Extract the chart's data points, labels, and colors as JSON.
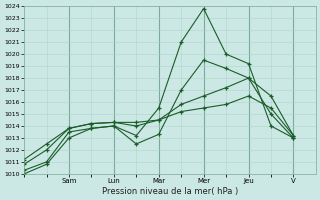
{
  "xlabel": "Pression niveau de la mer( hPa )",
  "bg_color": "#cce8e4",
  "grid_color": "#b0d4cc",
  "line_color": "#1a5c2a",
  "vline_color": "#7aaa99",
  "ylim": [
    1010,
    1024
  ],
  "yticks": [
    1010,
    1011,
    1012,
    1013,
    1014,
    1015,
    1016,
    1017,
    1018,
    1019,
    1020,
    1021,
    1022,
    1023,
    1024
  ],
  "x_day_labels": [
    "Sam",
    "Lun",
    "Mar",
    "Mer",
    "Jeu",
    "V"
  ],
  "x_day_positions": [
    2,
    4,
    6,
    8,
    10,
    12
  ],
  "x_vlines": [
    2,
    4,
    6,
    8,
    10,
    12
  ],
  "xlim": [
    0,
    13
  ],
  "num_x_points": 13,
  "series": [
    [
      1010.0,
      1010.8,
      1013.0,
      1013.8,
      1014.0,
      1013.2,
      1015.5,
      1021.0,
      1023.8,
      1020.0,
      1019.2,
      1014.0,
      1013.0
    ],
    [
      1010.3,
      1011.0,
      1013.5,
      1013.8,
      1014.0,
      1012.5,
      1013.3,
      1017.0,
      1019.5,
      1018.8,
      1018.0,
      1015.0,
      1013.0
    ],
    [
      1010.8,
      1012.0,
      1013.8,
      1014.2,
      1014.3,
      1014.0,
      1014.5,
      1015.8,
      1016.5,
      1017.2,
      1018.0,
      1016.5,
      1013.2
    ],
    [
      1011.2,
      1012.5,
      1013.8,
      1014.2,
      1014.3,
      1014.3,
      1014.5,
      1015.2,
      1015.5,
      1015.8,
      1016.5,
      1015.5,
      1013.2
    ]
  ]
}
